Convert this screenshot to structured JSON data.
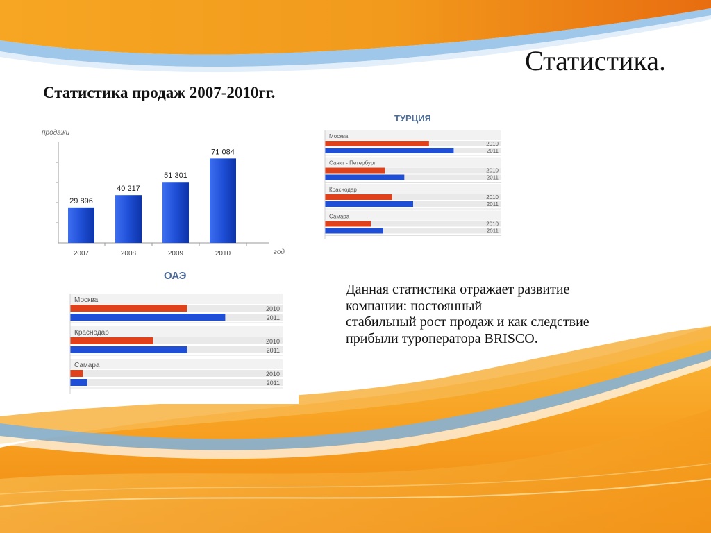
{
  "slide": {
    "title": "Статистика.",
    "subtitle": "Статистика продаж 2007-2010гг.",
    "description_lines": [
      "Данная статистика отражает развитие",
      "компании: постоянный",
      "стабильный рост продаж и как следствие",
      "прибыли туроператора BRISCO."
    ]
  },
  "colors": {
    "bar_blue": "#1f4fd6",
    "bar_red": "#e0401a",
    "orange_wave": "#f39a1d",
    "blue_wave": "#7fb3e0"
  },
  "chart_data": [
    {
      "type": "bar",
      "title": "",
      "ylabel": "продажи",
      "xlabel": "год",
      "categories": [
        "2007",
        "2008",
        "2009",
        "2010"
      ],
      "values": [
        29896,
        40217,
        51301,
        71084
      ],
      "value_labels": [
        "29 896",
        "40 217",
        "51 301",
        "71 084"
      ],
      "ylim": [
        0,
        90000
      ],
      "grid": false
    },
    {
      "type": "bar",
      "orientation": "horizontal",
      "title": "ТУРЦИЯ",
      "groups": [
        "Москва",
        "Санкт - Петербург",
        "Краснодар",
        "Самара"
      ],
      "series": [
        {
          "name": "2010",
          "values": [
            0.59,
            0.34,
            0.38,
            0.26
          ]
        },
        {
          "name": "2011",
          "values": [
            0.73,
            0.45,
            0.5,
            0.33
          ]
        }
      ],
      "value_scale": "fraction of row width",
      "grid": false
    },
    {
      "type": "bar",
      "orientation": "horizontal",
      "title": "ОАЭ",
      "groups": [
        "Москва",
        "Краснодар",
        "Самара"
      ],
      "series": [
        {
          "name": "2010",
          "values": [
            0.55,
            0.39,
            0.06
          ]
        },
        {
          "name": "2011",
          "values": [
            0.73,
            0.55,
            0.08
          ]
        }
      ],
      "value_scale": "fraction of row width",
      "grid": false
    }
  ]
}
